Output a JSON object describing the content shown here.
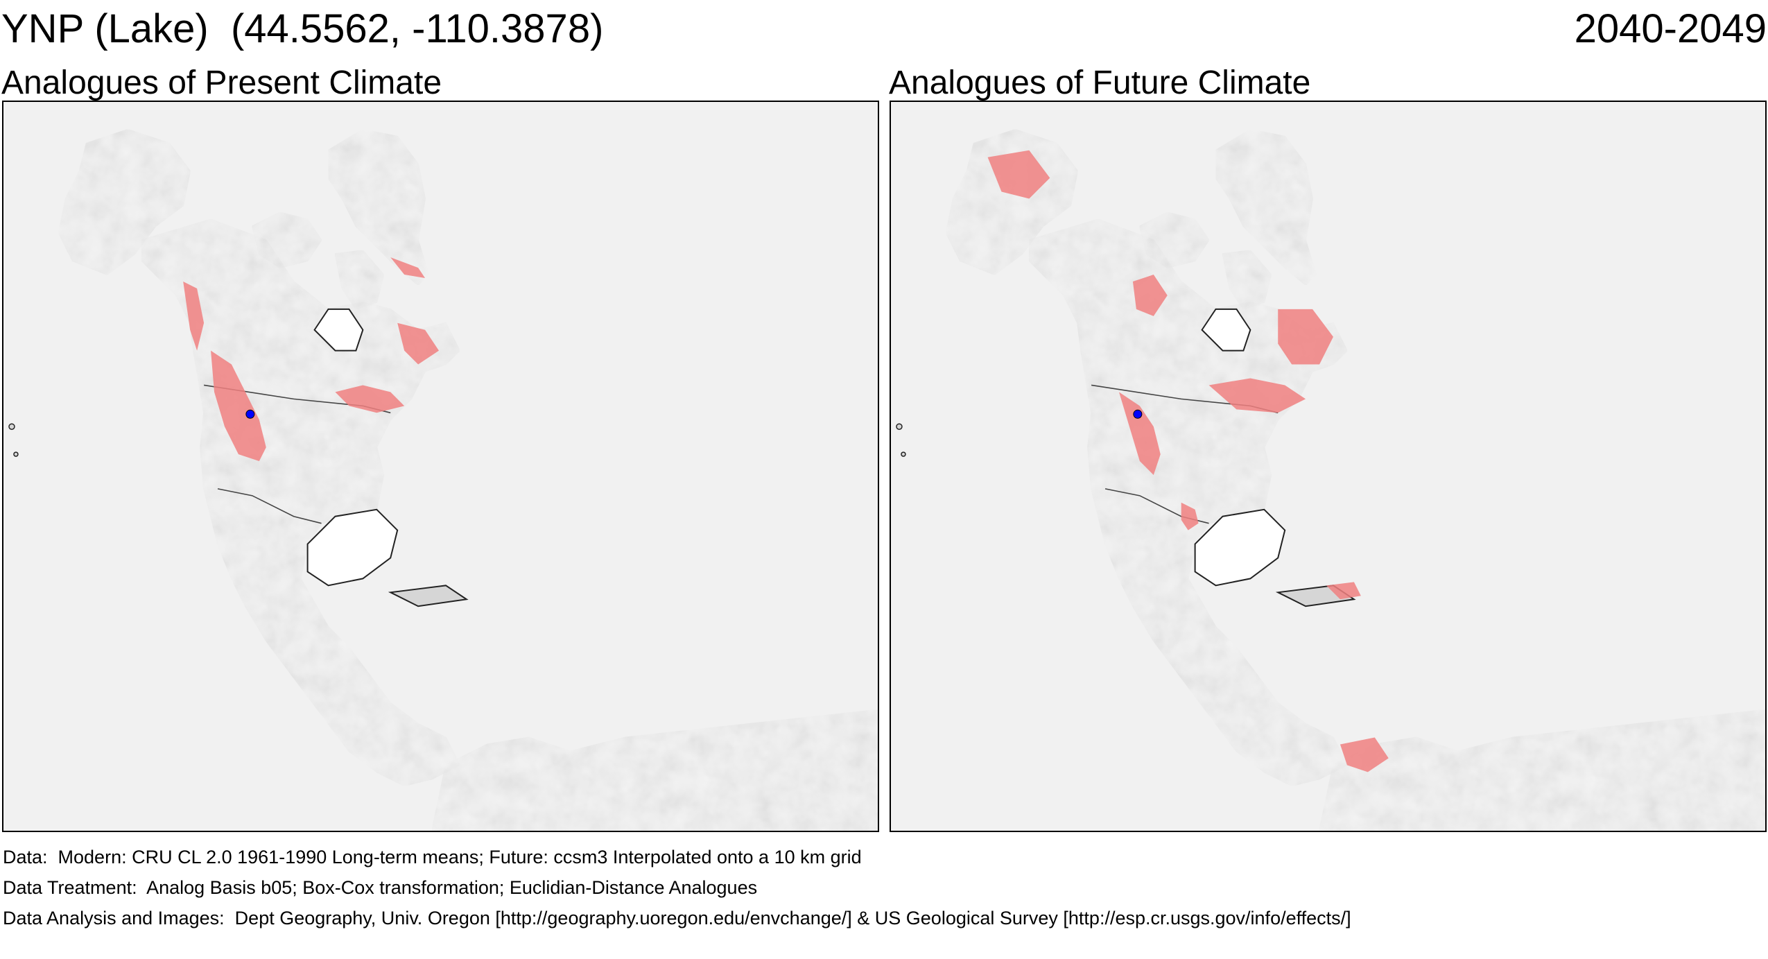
{
  "header": {
    "site_label": "YNP (Lake)  (44.5562, -110.3878)",
    "period": "2040-2049"
  },
  "panels": [
    {
      "title": "Analogues of Present Climate",
      "analog_color": "#f08080"
    },
    {
      "title": "Analogues of Future Climate",
      "analog_color": "#f08080"
    }
  ],
  "site_marker_color": "#0000ff",
  "footer": {
    "data": "Data:  Modern: CRU CL 2.0 1961-1990 Long-term means; Future: ccsm3 Interpolated onto a 10 km grid",
    "treatment": "Data Treatment:  Analog Basis b05; Box-Cox transformation; Euclidian-Distance Analogues",
    "analysis": "Data Analysis and Images:  Dept Geography, Univ. Oregon [http://geography.uoregon.edu/envchange/] & US Geological Survey [http://esp.cr.usgs.gov/info/effects/]"
  }
}
